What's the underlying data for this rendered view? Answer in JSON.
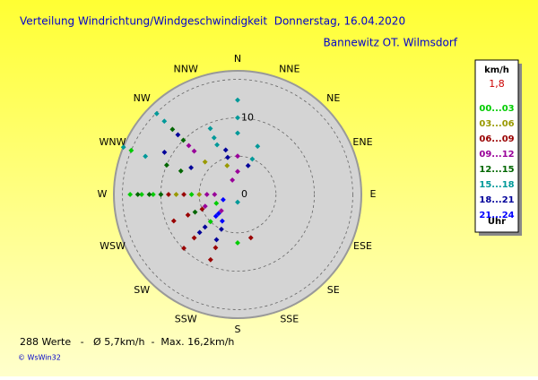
{
  "chart_data": {
    "type": "polar-scatter",
    "title": "Verteilung Windrichtung/Windgeschwindigkeit  Donnerstag, 16.04.2020",
    "subtitle": "Bannewitz OT. Wilmsdorf",
    "categories": [
      "N",
      "NNE",
      "NE",
      "ENE",
      "E",
      "ESE",
      "SE",
      "SSE",
      "S",
      "SSW",
      "SW",
      "WSW",
      "W",
      "WNW",
      "NW",
      "NNW"
    ],
    "rlim": [
      0,
      16
    ],
    "rticks": [
      0,
      10
    ],
    "rgrid": [
      5,
      10,
      15
    ],
    "legend": {
      "title": "km/h",
      "current": "1,8",
      "footer": "Uhr"
    },
    "stats": "288 Werte   -   Ø 5,7km/h  -  Max. 16,2km/h",
    "copyright": "© WsWin32",
    "series": [
      {
        "name": "00...03",
        "color": "#00cc00",
        "directions": [
          270,
          270,
          270,
          270,
          292.5,
          247.5,
          180,
          225
        ],
        "values": [
          14,
          12.5,
          11,
          6,
          15,
          3,
          6.3,
          5
        ]
      },
      {
        "name": "03...06",
        "color": "#999900",
        "directions": [
          270,
          270,
          315,
          340
        ],
        "values": [
          8,
          5,
          6,
          4
        ]
      },
      {
        "name": "06...09",
        "color": "#990000",
        "directions": [
          247.5,
          247.5,
          247.5,
          225,
          225,
          270,
          270,
          202.5,
          202.5,
          163
        ],
        "values": [
          9,
          7,
          5,
          9.9,
          8,
          9,
          7,
          9.2,
          7.5,
          5.9
        ]
      },
      {
        "name": "09...12",
        "color": "#990099",
        "directions": [
          0,
          0,
          340,
          270,
          270,
          315,
          315,
          225,
          250
        ],
        "values": [
          5,
          3,
          2,
          4,
          3,
          8,
          9,
          3,
          4.5
        ]
      },
      {
        "name": "12...15",
        "color": "#006600",
        "directions": [
          270,
          270,
          270,
          292.5,
          292.5,
          315,
          315,
          247.5
        ],
        "values": [
          13,
          11.5,
          10,
          10,
          8,
          10,
          12,
          6
        ]
      },
      {
        "name": "15...18",
        "color": "#009999",
        "directions": [
          0,
          0,
          0,
          337.5,
          337.5,
          337.5,
          292.5,
          292.5,
          315,
          315,
          22.5,
          22.5,
          180
        ],
        "values": [
          12.3,
          10,
          8,
          9.3,
          8,
          7,
          16.1,
          13,
          14.9,
          13.5,
          6.8,
          5,
          1
        ]
      },
      {
        "name": "18...21",
        "color": "#000099",
        "directions": [
          300,
          300,
          225,
          225,
          205,
          205,
          345,
          345,
          315,
          20
        ],
        "values": [
          11,
          7,
          7,
          6,
          6.5,
          5,
          6,
          5,
          11,
          4
        ]
      },
      {
        "name": "21...24",
        "color": "#0000ff",
        "directions": [
          225,
          225,
          250,
          210
        ],
        "values": [
          4,
          3.5,
          2,
          4
        ]
      }
    ]
  }
}
